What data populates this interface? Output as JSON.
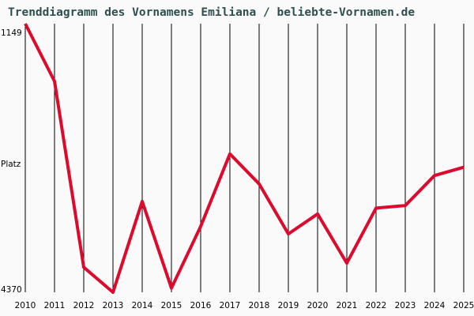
{
  "title": "Trenddiagramm des Vornamens Emiliana / beliebte-Vornamen.de",
  "y_axis": {
    "top_label": "1149",
    "mid_label": "Platz",
    "bottom_label": "4370"
  },
  "colors": {
    "line": "#dc0a2c",
    "grid": "#000000",
    "background": "#fafafa",
    "title": "#2f4f4f"
  },
  "chart_data": {
    "type": "line",
    "title": "Trenddiagramm des Vornamens Emiliana / beliebte-Vornamen.de",
    "xlabel": "",
    "ylabel": "Platz",
    "ylim": [
      4370,
      1149
    ],
    "y_inverted": true,
    "grid": "vertical",
    "categories": [
      "2010",
      "2011",
      "2012",
      "2013",
      "2014",
      "2015",
      "2016",
      "2017",
      "2018",
      "2019",
      "2020",
      "2021",
      "2022",
      "2023",
      "2024",
      "2025"
    ],
    "series": [
      {
        "name": "Emiliana",
        "values": [
          1149,
          1840,
          4070,
          4370,
          3280,
          4320,
          3580,
          2710,
          3070,
          3670,
          3430,
          4020,
          3360,
          3330,
          2970,
          2870
        ]
      }
    ]
  }
}
